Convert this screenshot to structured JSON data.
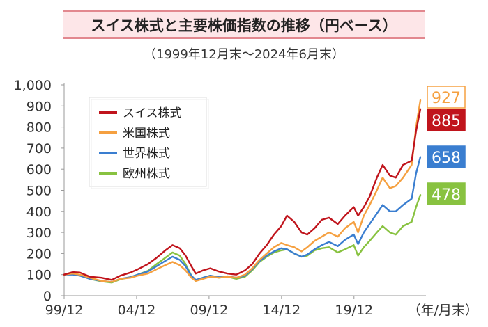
{
  "chart_data": {
    "type": "line",
    "title": "スイス株式と主要株価指数の推移（円ベース）",
    "subtitle": "（1999年12月末～2024年6月末）",
    "x_unit_label": "（年/月末）",
    "x_ticks": [
      "99/12",
      "04/12",
      "09/12",
      "14/12",
      "19/12"
    ],
    "x_range": [
      1999.92,
      2024.5
    ],
    "y_ticks": [
      "0",
      "100",
      "200",
      "300",
      "400",
      "500",
      "600",
      "700",
      "800",
      "900",
      "1,000"
    ],
    "ylim": [
      0,
      1000
    ],
    "legend_position": "top-left",
    "series": [
      {
        "name": "スイス株式",
        "color": "#c0141c",
        "end_label": "885",
        "points": [
          [
            1999.92,
            100
          ],
          [
            2000.5,
            112
          ],
          [
            2001.0,
            110
          ],
          [
            2001.7,
            90
          ],
          [
            2002.5,
            85
          ],
          [
            2003.2,
            75
          ],
          [
            2003.8,
            95
          ],
          [
            2004.5,
            110
          ],
          [
            2005.0,
            125
          ],
          [
            2005.7,
            150
          ],
          [
            2006.3,
            180
          ],
          [
            2006.9,
            215
          ],
          [
            2007.4,
            240
          ],
          [
            2007.9,
            225
          ],
          [
            2008.3,
            190
          ],
          [
            2008.7,
            140
          ],
          [
            2009.0,
            105
          ],
          [
            2009.5,
            120
          ],
          [
            2010.0,
            130
          ],
          [
            2010.6,
            115
          ],
          [
            2011.2,
            105
          ],
          [
            2011.8,
            100
          ],
          [
            2012.4,
            120
          ],
          [
            2012.9,
            150
          ],
          [
            2013.4,
            200
          ],
          [
            2013.9,
            240
          ],
          [
            2014.4,
            290
          ],
          [
            2014.9,
            330
          ],
          [
            2015.3,
            380
          ],
          [
            2015.8,
            350
          ],
          [
            2016.3,
            300
          ],
          [
            2016.7,
            290
          ],
          [
            2017.2,
            320
          ],
          [
            2017.7,
            360
          ],
          [
            2018.2,
            370
          ],
          [
            2018.8,
            340
          ],
          [
            2019.3,
            380
          ],
          [
            2019.9,
            420
          ],
          [
            2020.2,
            380
          ],
          [
            2020.6,
            420
          ],
          [
            2021.0,
            470
          ],
          [
            2021.5,
            560
          ],
          [
            2021.9,
            620
          ],
          [
            2022.4,
            570
          ],
          [
            2022.8,
            560
          ],
          [
            2023.3,
            620
          ],
          [
            2023.9,
            640
          ],
          [
            2024.2,
            780
          ],
          [
            2024.5,
            885
          ]
        ]
      },
      {
        "name": "米国株式",
        "color": "#f5a040",
        "end_label": "927",
        "points": [
          [
            1999.92,
            100
          ],
          [
            2000.5,
            105
          ],
          [
            2001.0,
            100
          ],
          [
            2001.7,
            85
          ],
          [
            2002.5,
            70
          ],
          [
            2003.2,
            65
          ],
          [
            2003.8,
            80
          ],
          [
            2004.5,
            85
          ],
          [
            2005.0,
            95
          ],
          [
            2005.7,
            105
          ],
          [
            2006.3,
            125
          ],
          [
            2006.9,
            145
          ],
          [
            2007.4,
            160
          ],
          [
            2007.9,
            145
          ],
          [
            2008.3,
            120
          ],
          [
            2008.7,
            85
          ],
          [
            2009.0,
            70
          ],
          [
            2009.5,
            80
          ],
          [
            2010.0,
            90
          ],
          [
            2010.6,
            85
          ],
          [
            2011.2,
            90
          ],
          [
            2011.8,
            85
          ],
          [
            2012.4,
            100
          ],
          [
            2012.9,
            130
          ],
          [
            2013.4,
            170
          ],
          [
            2013.9,
            200
          ],
          [
            2014.4,
            230
          ],
          [
            2014.9,
            250
          ],
          [
            2015.3,
            240
          ],
          [
            2015.8,
            230
          ],
          [
            2016.3,
            210
          ],
          [
            2016.7,
            230
          ],
          [
            2017.2,
            260
          ],
          [
            2017.7,
            280
          ],
          [
            2018.2,
            300
          ],
          [
            2018.8,
            280
          ],
          [
            2019.3,
            320
          ],
          [
            2019.9,
            350
          ],
          [
            2020.2,
            300
          ],
          [
            2020.6,
            380
          ],
          [
            2021.0,
            430
          ],
          [
            2021.5,
            500
          ],
          [
            2021.9,
            560
          ],
          [
            2022.4,
            510
          ],
          [
            2022.8,
            520
          ],
          [
            2023.3,
            560
          ],
          [
            2023.9,
            620
          ],
          [
            2024.2,
            800
          ],
          [
            2024.5,
            927
          ]
        ]
      },
      {
        "name": "世界株式",
        "color": "#3a7ed0",
        "end_label": "658",
        "points": [
          [
            1999.92,
            100
          ],
          [
            2000.5,
            100
          ],
          [
            2001.0,
            95
          ],
          [
            2001.7,
            80
          ],
          [
            2002.5,
            70
          ],
          [
            2003.2,
            65
          ],
          [
            2003.8,
            80
          ],
          [
            2004.5,
            88
          ],
          [
            2005.0,
            100
          ],
          [
            2005.7,
            115
          ],
          [
            2006.3,
            140
          ],
          [
            2006.9,
            165
          ],
          [
            2007.4,
            185
          ],
          [
            2007.9,
            170
          ],
          [
            2008.3,
            140
          ],
          [
            2008.7,
            95
          ],
          [
            2009.0,
            75
          ],
          [
            2009.5,
            85
          ],
          [
            2010.0,
            95
          ],
          [
            2010.6,
            88
          ],
          [
            2011.2,
            92
          ],
          [
            2011.8,
            85
          ],
          [
            2012.4,
            95
          ],
          [
            2012.9,
            125
          ],
          [
            2013.4,
            165
          ],
          [
            2013.9,
            190
          ],
          [
            2014.4,
            210
          ],
          [
            2014.9,
            225
          ],
          [
            2015.3,
            220
          ],
          [
            2015.8,
            200
          ],
          [
            2016.3,
            185
          ],
          [
            2016.7,
            195
          ],
          [
            2017.2,
            220
          ],
          [
            2017.7,
            240
          ],
          [
            2018.2,
            255
          ],
          [
            2018.8,
            235
          ],
          [
            2019.3,
            265
          ],
          [
            2019.9,
            290
          ],
          [
            2020.2,
            245
          ],
          [
            2020.6,
            300
          ],
          [
            2021.0,
            340
          ],
          [
            2021.5,
            390
          ],
          [
            2021.9,
            430
          ],
          [
            2022.4,
            400
          ],
          [
            2022.8,
            400
          ],
          [
            2023.3,
            430
          ],
          [
            2023.9,
            460
          ],
          [
            2024.2,
            580
          ],
          [
            2024.5,
            658
          ]
        ]
      },
      {
        "name": "欧州株式",
        "color": "#88c240",
        "end_label": "478",
        "points": [
          [
            1999.92,
            100
          ],
          [
            2000.5,
            104
          ],
          [
            2001.0,
            96
          ],
          [
            2001.7,
            80
          ],
          [
            2002.5,
            68
          ],
          [
            2003.2,
            62
          ],
          [
            2003.8,
            78
          ],
          [
            2004.5,
            88
          ],
          [
            2005.0,
            100
          ],
          [
            2005.7,
            118
          ],
          [
            2006.3,
            150
          ],
          [
            2006.9,
            180
          ],
          [
            2007.4,
            205
          ],
          [
            2007.9,
            190
          ],
          [
            2008.3,
            150
          ],
          [
            2008.7,
            95
          ],
          [
            2009.0,
            70
          ],
          [
            2009.5,
            85
          ],
          [
            2010.0,
            95
          ],
          [
            2010.6,
            85
          ],
          [
            2011.2,
            90
          ],
          [
            2011.8,
            80
          ],
          [
            2012.4,
            90
          ],
          [
            2012.9,
            120
          ],
          [
            2013.4,
            160
          ],
          [
            2013.9,
            185
          ],
          [
            2014.4,
            205
          ],
          [
            2014.9,
            215
          ],
          [
            2015.3,
            220
          ],
          [
            2015.8,
            200
          ],
          [
            2016.3,
            185
          ],
          [
            2016.7,
            190
          ],
          [
            2017.2,
            215
          ],
          [
            2017.7,
            225
          ],
          [
            2018.2,
            230
          ],
          [
            2018.8,
            205
          ],
          [
            2019.3,
            220
          ],
          [
            2019.9,
            240
          ],
          [
            2020.2,
            190
          ],
          [
            2020.6,
            230
          ],
          [
            2021.0,
            260
          ],
          [
            2021.5,
            300
          ],
          [
            2021.9,
            330
          ],
          [
            2022.4,
            300
          ],
          [
            2022.8,
            290
          ],
          [
            2023.3,
            330
          ],
          [
            2023.9,
            350
          ],
          [
            2024.2,
            420
          ],
          [
            2024.5,
            478
          ]
        ]
      }
    ]
  }
}
